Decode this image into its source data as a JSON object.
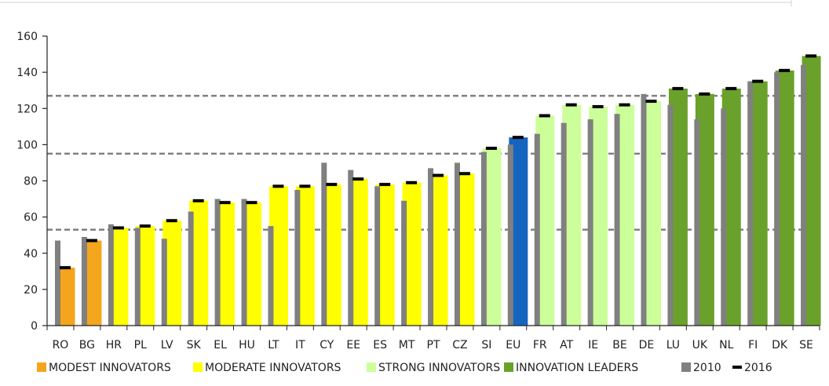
{
  "chart_data": {
    "type": "bar",
    "title": "",
    "xlabel": "",
    "ylabel": "",
    "ylim": [
      0,
      160
    ],
    "yticks": [
      0,
      20,
      40,
      60,
      80,
      100,
      120,
      140,
      160
    ],
    "grid": false,
    "legend_position": "bottom",
    "categories": [
      "RO",
      "BG",
      "HR",
      "PL",
      "LV",
      "SK",
      "EL",
      "HU",
      "LT",
      "IT",
      "CY",
      "EE",
      "ES",
      "MT",
      "PT",
      "CZ",
      "SI",
      "EU",
      "FR",
      "AT",
      "IE",
      "BE",
      "DE",
      "LU",
      "UK",
      "NL",
      "FI",
      "DK",
      "SE"
    ],
    "groups": [
      "modest",
      "modest",
      "moderate",
      "moderate",
      "moderate",
      "moderate",
      "moderate",
      "moderate",
      "moderate",
      "moderate",
      "moderate",
      "moderate",
      "moderate",
      "moderate",
      "moderate",
      "moderate",
      "strong",
      "eu",
      "strong",
      "strong",
      "strong",
      "strong",
      "strong",
      "leader",
      "leader",
      "leader",
      "leader",
      "leader",
      "leader"
    ],
    "series": [
      {
        "name": "2010",
        "values": [
          47,
          49,
          56,
          54,
          48,
          63,
          70,
          70,
          55,
          75,
          90,
          86,
          77,
          69,
          87,
          90,
          96,
          100,
          106,
          112,
          114,
          117,
          128,
          122,
          114,
          120,
          135,
          140,
          144
        ]
      },
      {
        "name": "2016",
        "values": [
          32,
          47,
          54,
          55,
          58,
          69,
          68,
          68,
          77,
          77,
          78,
          81,
          78,
          79,
          83,
          84,
          98,
          104,
          116,
          122,
          121,
          122,
          124,
          131,
          128,
          131,
          135,
          141,
          149
        ]
      }
    ],
    "reference_lines": [
      53,
      95,
      127
    ],
    "legend": [
      {
        "key": "modest",
        "label": "MODEST INNOVATORS",
        "color": "#F5A51C",
        "kind": "square"
      },
      {
        "key": "moderate",
        "label": "MODERATE INNOVATORS",
        "color": "#FFFF00",
        "kind": "square"
      },
      {
        "key": "strong",
        "label": "STRONG INNOVATORS",
        "color": "#CCFF99",
        "kind": "square"
      },
      {
        "key": "leader",
        "label": "INNOVATION LEADERS",
        "color": "#6AA12A",
        "kind": "square"
      },
      {
        "key": "y2010",
        "label": "2010",
        "color": "#808080",
        "kind": "square"
      },
      {
        "key": "y2016",
        "label": "2016",
        "color": "#000000",
        "kind": "dash"
      }
    ],
    "colors": {
      "modest": "#F5A51C",
      "moderate": "#FFFF00",
      "strong": "#CCFF99",
      "eu": "#1565C0",
      "leader": "#6AA12A",
      "y2010": "#808080",
      "y2016": "#000000",
      "refline": "#808080",
      "axis": "#222222"
    }
  }
}
